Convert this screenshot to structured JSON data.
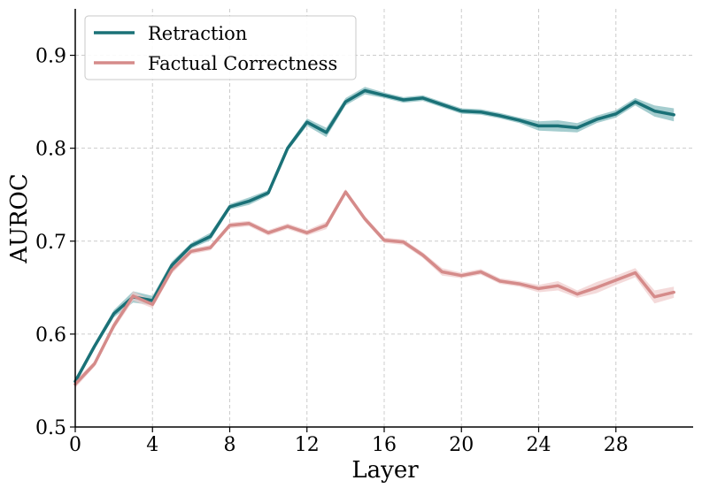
{
  "chart_data": {
    "type": "line",
    "title": "",
    "xlabel": "Layer",
    "ylabel": "AUROC",
    "xlim": [
      0,
      32
    ],
    "ylim": [
      0.5,
      0.95
    ],
    "xticks": [
      0,
      4,
      8,
      12,
      16,
      20,
      24,
      28
    ],
    "yticks": [
      0.5,
      0.6,
      0.7,
      0.8,
      0.9
    ],
    "xtick_labels": [
      "0",
      "4",
      "8",
      "12",
      "16",
      "20",
      "24",
      "28"
    ],
    "ytick_labels": [
      "0.5",
      "0.6",
      "0.7",
      "0.8",
      "0.9"
    ],
    "grid": true,
    "legend_position": "top-left",
    "x": [
      0,
      1,
      2,
      3,
      4,
      5,
      6,
      7,
      8,
      9,
      10,
      11,
      12,
      13,
      14,
      15,
      16,
      17,
      18,
      19,
      20,
      21,
      22,
      23,
      24,
      25,
      26,
      27,
      28,
      29,
      30,
      31
    ],
    "series": [
      {
        "name": "Retraction",
        "color": "#1a7177",
        "band_color": "#7fb8bb",
        "values": [
          0.549,
          0.587,
          0.622,
          0.64,
          0.636,
          0.674,
          0.695,
          0.705,
          0.737,
          0.743,
          0.752,
          0.8,
          0.828,
          0.817,
          0.85,
          0.862,
          0.857,
          0.852,
          0.854,
          0.847,
          0.84,
          0.839,
          0.835,
          0.83,
          0.824,
          0.824,
          0.822,
          0.831,
          0.837,
          0.85,
          0.84,
          0.836
        ],
        "band": [
          0.003,
          0.003,
          0.004,
          0.006,
          0.005,
          0.004,
          0.003,
          0.004,
          0.003,
          0.004,
          0.003,
          0.003,
          0.004,
          0.005,
          0.004,
          0.004,
          0.003,
          0.003,
          0.003,
          0.003,
          0.003,
          0.003,
          0.003,
          0.003,
          0.005,
          0.006,
          0.005,
          0.004,
          0.004,
          0.004,
          0.006,
          0.007
        ]
      },
      {
        "name": "Factual Correctness",
        "color": "#d58b8a",
        "band_color": "#efcaca",
        "values": [
          0.546,
          0.568,
          0.609,
          0.641,
          0.632,
          0.669,
          0.689,
          0.693,
          0.717,
          0.719,
          0.709,
          0.716,
          0.709,
          0.717,
          0.753,
          0.724,
          0.701,
          0.699,
          0.685,
          0.667,
          0.663,
          0.667,
          0.657,
          0.654,
          0.649,
          0.652,
          0.643,
          0.65,
          0.658,
          0.666,
          0.64,
          0.645
        ],
        "band": [
          0.004,
          0.003,
          0.004,
          0.005,
          0.004,
          0.004,
          0.003,
          0.003,
          0.003,
          0.003,
          0.003,
          0.003,
          0.003,
          0.004,
          0.003,
          0.003,
          0.003,
          0.003,
          0.003,
          0.004,
          0.003,
          0.003,
          0.003,
          0.003,
          0.004,
          0.005,
          0.004,
          0.006,
          0.005,
          0.005,
          0.007,
          0.006
        ]
      }
    ]
  }
}
